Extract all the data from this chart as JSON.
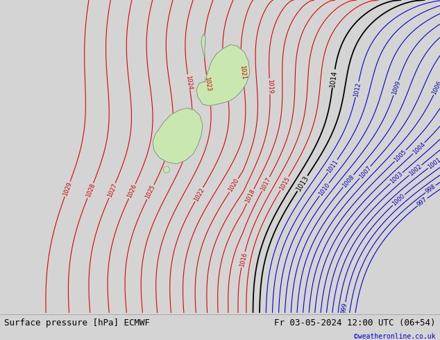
{
  "title_left": "Surface pressure [hPa] ECMWF",
  "title_right": "Fr 03-05-2024 12:00 UTC (06+54)",
  "copyright": "©weatheronline.co.uk",
  "bg_color": "#d4d4d4",
  "map_area_color": "#e0e0e0",
  "land_color": "#c8e8b0",
  "coast_color": "#808080",
  "isobar_red_color": "#dd0000",
  "isobar_blue_color": "#0000cc",
  "isobar_black_color": "#000000",
  "label_color_red": "#cc0000",
  "label_color_blue": "#0000bb",
  "label_color_black": "#000000",
  "font_size_labels": 6,
  "font_size_bottom": 9,
  "bottom_bar_color": "#c0c0c0",
  "red_levels": [
    1015,
    1016,
    1017,
    1018,
    1019,
    1020,
    1021,
    1022,
    1023,
    1024,
    1025,
    1026,
    1027,
    1028,
    1029
  ],
  "black_levels": [
    1013,
    1014
  ],
  "blue_levels": [
    997,
    998,
    999,
    1000,
    1001,
    1002,
    1003,
    1004,
    1005,
    1006,
    1007,
    1008,
    1009,
    1010,
    1011,
    1012
  ]
}
